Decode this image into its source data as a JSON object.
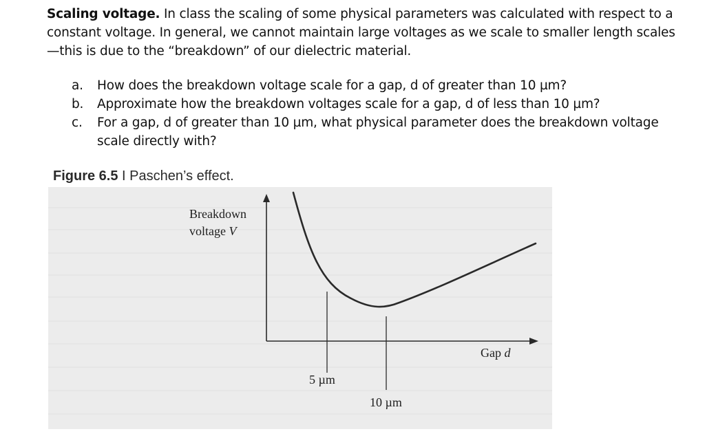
{
  "problem": {
    "heading": "Scaling voltage.",
    "body": " In class the scaling of some physical parameters was calculated with respect to a constant voltage. In general, we cannot maintain large voltages as we scale to smaller length scales—this is due to the “breakdown” of our dielectric material."
  },
  "questions": [
    {
      "marker": "a.",
      "text": "How does the breakdown voltage scale for a gap, d of greater than 10 µm?"
    },
    {
      "marker": "b.",
      "text": "Approximate how the breakdown voltages scale for a gap, d of less than 10 µm?"
    },
    {
      "marker": "c.",
      "text": "For a gap, d of greater than 10 µm, what physical parameter does the breakdown voltage scale directly with?"
    }
  ],
  "figure": {
    "caption_number": "Figure 6.5",
    "caption_sep": " I ",
    "caption_text": "Paschen’s effect.",
    "y_label_line1": "Breakdown",
    "y_label_line2": "voltage ",
    "y_label_var": "V",
    "x_label": "Gap ",
    "x_label_var": "d",
    "tick_5": "5 µm",
    "tick_10": "10 µm",
    "colors": {
      "background": "#ececec",
      "curve": "#2a2a2a"
    }
  }
}
